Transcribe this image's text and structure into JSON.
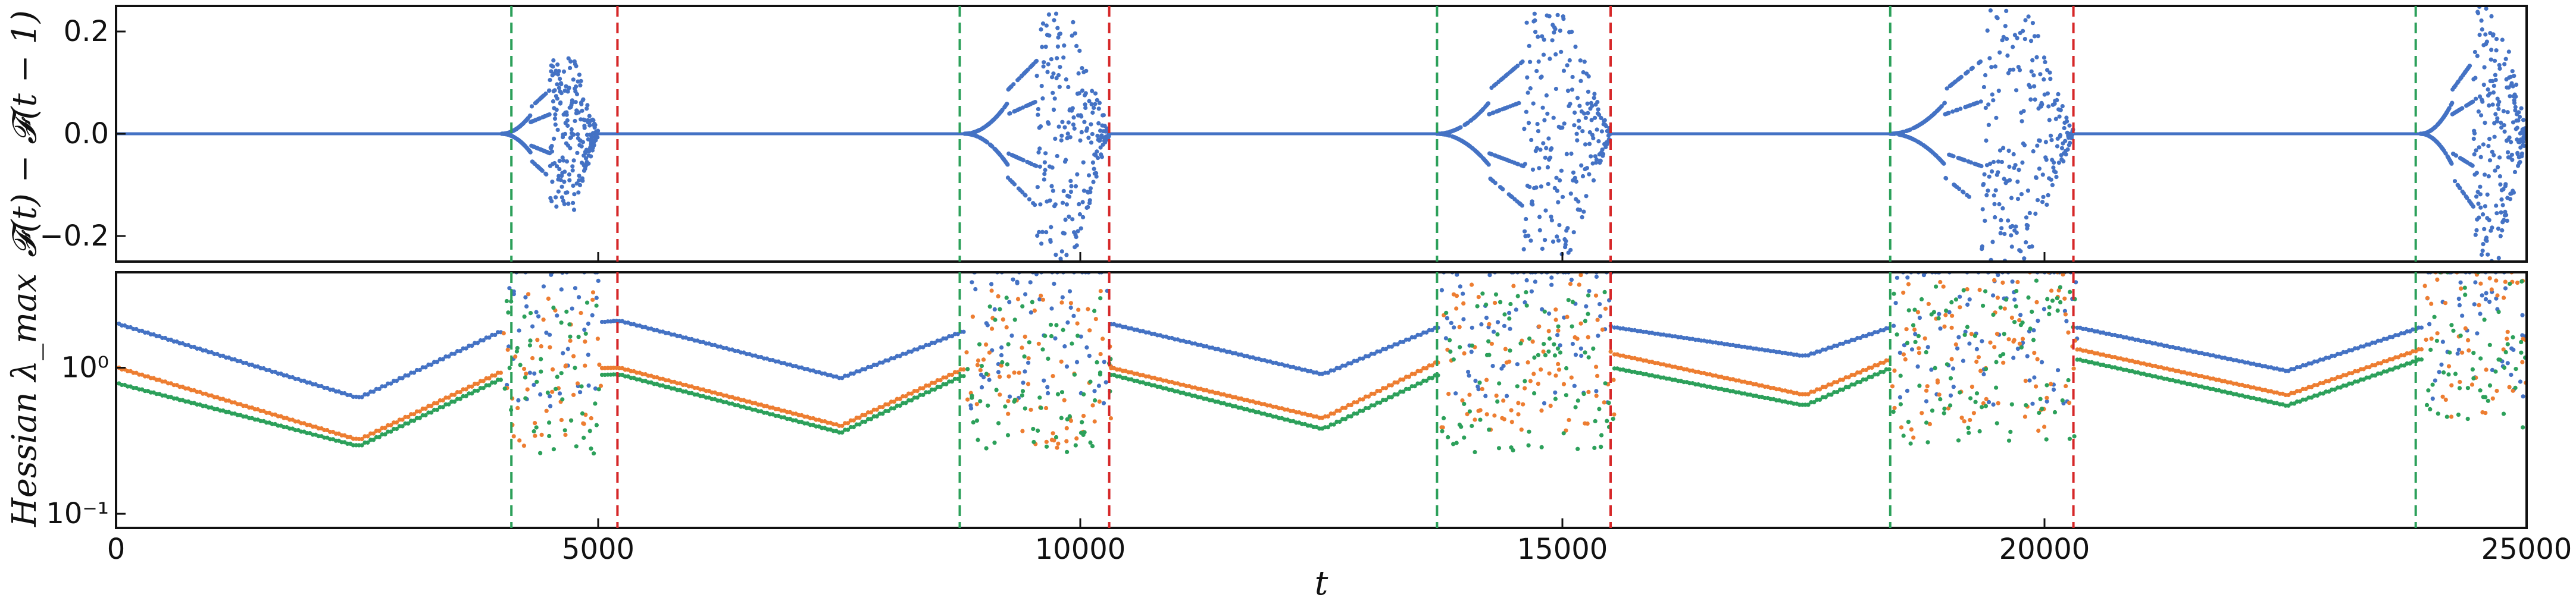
{
  "chart_data": [
    {
      "type": "scatter",
      "ylabel": "𝓕(t) − 𝓕(t − 1)",
      "ylim": [
        -0.25,
        0.25
      ],
      "yticks": [
        "0.2",
        "0.0",
        "−0.2"
      ],
      "ytick_values": [
        0.2,
        0.0,
        -0.2
      ],
      "xlim": [
        0,
        25000
      ],
      "grid": false,
      "series": [
        {
          "color": "#4472c4",
          "stable_value": 0.0,
          "bifurcation_windows": [
            {
              "x_start": 4000,
              "x_end": 5000,
              "amplitude": 0.15
            },
            {
              "x_start": 8800,
              "x_end": 10300,
              "amplitude": 0.25
            },
            {
              "x_start": 13700,
              "x_end": 15500,
              "amplitude": 0.25
            },
            {
              "x_start": 18400,
              "x_end": 20300,
              "amplitude": 0.25
            },
            {
              "x_start": 23900,
              "x_end": 25000,
              "amplitude": 0.25
            }
          ]
        }
      ]
    },
    {
      "type": "scatter",
      "ylabel": "Hessian λ_max",
      "yscale": "log",
      "ylim": [
        0.08,
        4.5
      ],
      "yticks": [
        "10⁰",
        "10⁻¹"
      ],
      "ytick_values": [
        1.0,
        0.1
      ],
      "xlabel": "t",
      "xlim": [
        0,
        25000
      ],
      "xticks": [
        "0",
        "5000",
        "10000",
        "15000",
        "20000",
        "25000"
      ],
      "xtick_values": [
        0,
        5000,
        10000,
        15000,
        20000,
        25000
      ],
      "grid": false,
      "series": [
        {
          "color": "#4472c4",
          "x": [
            0,
            2500,
            4000,
            5200,
            7500,
            8800,
            10300,
            12500,
            13700,
            15500,
            17500,
            18400,
            20300,
            22500,
            23900
          ],
          "y": [
            2.0,
            0.62,
            1.8,
            2.1,
            0.85,
            1.8,
            2.0,
            0.9,
            1.9,
            1.9,
            1.2,
            1.9,
            1.9,
            0.95,
            1.9
          ]
        },
        {
          "color": "#ed7d31",
          "x": [
            0,
            2500,
            4000,
            5200,
            7500,
            8800,
            10300,
            12500,
            13700,
            15500,
            17500,
            18400,
            20300,
            22500,
            23900
          ],
          "y": [
            1.0,
            0.32,
            0.95,
            1.0,
            0.4,
            1.0,
            1.0,
            0.45,
            1.1,
            1.25,
            0.65,
            1.15,
            1.35,
            0.65,
            1.35
          ]
        },
        {
          "color": "#2ca05a",
          "x": [
            0,
            2500,
            4000,
            5200,
            7500,
            8800,
            10300,
            12500,
            13700,
            15500,
            17500,
            18400,
            20300,
            22500,
            23900
          ],
          "y": [
            0.78,
            0.29,
            0.85,
            0.9,
            0.36,
            0.9,
            0.9,
            0.38,
            0.9,
            1.0,
            0.55,
            1.0,
            1.15,
            0.55,
            1.15
          ]
        }
      ]
    }
  ],
  "markers": {
    "green_lines": [
      4100,
      8750,
      13700,
      18400,
      23850
    ],
    "red_lines": [
      5200,
      10300,
      15500,
      20300
    ],
    "green_color": "#2ca05a",
    "red_color": "#d62728"
  }
}
